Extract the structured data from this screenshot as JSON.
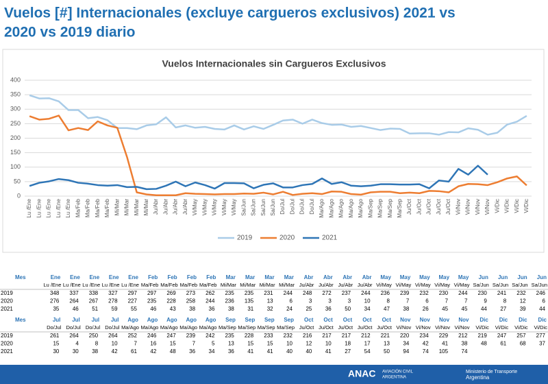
{
  "header": {
    "title_line1": "Vuelos [#] Internacionales (excluye cargueros exclusivos) 2021 vs",
    "title_line2": "2020 vs 2019 diario"
  },
  "chart_data": {
    "type": "line",
    "title": "Vuelos Internacionales sin Cargueros Exclusivos",
    "categories": [
      "Lu /Ene",
      "Lu /Ene",
      "Lu /Ene",
      "Lu /Ene",
      "Lu /Ene",
      "Ma/Feb",
      "Ma/Feb",
      "Ma/Feb",
      "Ma/Feb",
      "Mi/Mar",
      "Mi/Mar",
      "Mi/Mar",
      "Mi/Mar",
      "Ju/Abr",
      "Ju/Abr",
      "Ju/Abr",
      "Ju/Abr",
      "Vi/May",
      "Vi/May",
      "Vi/May",
      "Vi/May",
      "Vi/May",
      "Sa/Jun",
      "Sa/Jun",
      "Sa/Jun",
      "Sa/Jun",
      "Do/Jul",
      "Do/Jul",
      "Do/Jul",
      "Do/Jul",
      "Ma/Ago",
      "Ma/Ago",
      "Ma/Ago",
      "Ma/Ago",
      "Ma/Ago",
      "Ma/Sep",
      "Ma/Sep",
      "Ma/Sep",
      "Ma/Sep",
      "Ju/Oct",
      "Ju/Oct",
      "Ju/Oct",
      "Ju/Oct",
      "Ju/Oct",
      "Vi/Nov",
      "Vi/Nov",
      "Vi/Nov",
      "Vi/Nov",
      "Vi/Dic",
      "Vi/Dic",
      "Vi/Dic",
      "Vi/Dic"
    ],
    "series": [
      {
        "name": "2019",
        "color": "#a9cce8",
        "values": [
          348,
          337,
          338,
          327,
          297,
          297,
          269,
          273,
          262,
          235,
          235,
          231,
          244,
          248,
          272,
          237,
          244,
          236,
          239,
          232,
          230,
          244,
          230,
          241,
          232,
          246,
          261,
          264,
          250,
          264,
          252,
          246,
          247,
          239,
          242,
          235,
          228,
          233,
          232,
          216,
          217,
          217,
          212,
          221,
          220,
          234,
          229,
          212,
          219,
          247,
          257,
          277
        ]
      },
      {
        "name": "2020",
        "color": "#ed7d31",
        "values": [
          276,
          264,
          267,
          278,
          227,
          235,
          228,
          258,
          244,
          236,
          135,
          13,
          6,
          3,
          3,
          3,
          10,
          8,
          7,
          6,
          7,
          7,
          9,
          8,
          12,
          6,
          15,
          4,
          8,
          10,
          7,
          16,
          15,
          7,
          5,
          13,
          15,
          15,
          10,
          12,
          10,
          18,
          17,
          13,
          34,
          42,
          41,
          38,
          48,
          61,
          68,
          37
        ]
      },
      {
        "name": "2021",
        "color": "#2e75b6",
        "values": [
          35,
          46,
          51,
          59,
          55,
          46,
          43,
          38,
          36,
          38,
          31,
          32,
          24,
          25,
          36,
          50,
          34,
          47,
          38,
          26,
          45,
          45,
          44,
          27,
          39,
          44,
          30,
          30,
          38,
          42,
          61,
          42,
          48,
          36,
          34,
          36,
          41,
          41,
          40,
          40,
          41,
          27,
          54,
          50,
          94,
          74,
          105,
          74,
          null,
          null,
          null,
          null
        ]
      }
    ],
    "ylim": [
      0,
      400
    ],
    "yticks": [
      0,
      50,
      100,
      150,
      200,
      250,
      300,
      350,
      400
    ],
    "legend": "bottom"
  },
  "tables": [
    {
      "row_header": "Mes",
      "months": [
        "Ene",
        "Ene",
        "Ene",
        "Ene",
        "Ene",
        "Feb",
        "Feb",
        "Feb",
        "Feb",
        "Mar",
        "Mar",
        "Mar",
        "Mar",
        "Abr",
        "Abr",
        "Abr",
        "Abr",
        "May",
        "May",
        "May",
        "May",
        "May",
        "Jun",
        "Jun",
        "Jun",
        "Jun"
      ],
      "days": [
        "Lu /Ene",
        "Lu /Ene",
        "Lu /Ene",
        "Lu /Ene",
        "Lu /Ene",
        "Ma/Feb",
        "Ma/Feb",
        "Ma/Feb",
        "Ma/Feb",
        "Mi/Mar",
        "Mi/Mar",
        "Mi/Mar",
        "Mi/Mar",
        "Ju/Abr",
        "Ju/Abr",
        "Ju/Abr",
        "Ju/Abr",
        "Vi/May",
        "Vi/May",
        "Vi/May",
        "Vi/May",
        "Vi/May",
        "Sa/Jun",
        "Sa/Jun",
        "Sa/Jun",
        "Sa/Jun"
      ],
      "rows": [
        {
          "label": "2019",
          "values": [
            348,
            337,
            338,
            327,
            297,
            297,
            269,
            273,
            262,
            235,
            235,
            231,
            244,
            248,
            272,
            237,
            244,
            236,
            239,
            232,
            230,
            244,
            230,
            241,
            232,
            246
          ]
        },
        {
          "label": "2020",
          "values": [
            276,
            264,
            267,
            278,
            227,
            235,
            228,
            258,
            244,
            236,
            135,
            13,
            6,
            3,
            3,
            3,
            10,
            8,
            7,
            6,
            7,
            7,
            9,
            8,
            12,
            6
          ]
        },
        {
          "label": "2021",
          "values": [
            35,
            46,
            51,
            59,
            55,
            46,
            43,
            38,
            36,
            38,
            31,
            32,
            24,
            25,
            36,
            50,
            34,
            47,
            38,
            26,
            45,
            45,
            44,
            27,
            39,
            44
          ]
        }
      ]
    },
    {
      "row_header": "Mes",
      "months": [
        "Jul",
        "Jul",
        "Jul",
        "Jul",
        "Ago",
        "Ago",
        "Ago",
        "Ago",
        "Ago",
        "Sep",
        "Sep",
        "Sep",
        "Sep",
        "Oct",
        "Oct",
        "Oct",
        "Oct",
        "Oct",
        "Nov",
        "Nov",
        "Nov",
        "Nov",
        "Dic",
        "Dic",
        "Dic",
        "Dic"
      ],
      "days": [
        "Do/Jul",
        "Do/Jul",
        "Do/Jul",
        "Do/Jul",
        "Ma/Ago",
        "Ma/Ago",
        "Ma/Ago",
        "Ma/Ago",
        "Ma/Ago",
        "Ma/Sep",
        "Ma/Sep",
        "Ma/Sep",
        "Ma/Sep",
        "Ju/Oct",
        "Ju/Oct",
        "Ju/Oct",
        "Ju/Oct",
        "Ju/Oct",
        "Vi/Nov",
        "Vi/Nov",
        "Vi/Nov",
        "Vi/Nov",
        "Vi/Dic",
        "Vi/Dic",
        "Vi/Dic",
        "Vi/Dic"
      ],
      "rows": [
        {
          "label": "2019",
          "values": [
            261,
            264,
            250,
            264,
            252,
            246,
            247,
            239,
            242,
            235,
            228,
            233,
            232,
            216,
            217,
            217,
            212,
            221,
            220,
            234,
            229,
            212,
            219,
            247,
            257,
            277
          ]
        },
        {
          "label": "2020",
          "values": [
            15,
            4,
            8,
            10,
            7,
            16,
            15,
            7,
            5,
            13,
            15,
            15,
            10,
            12,
            10,
            18,
            17,
            13,
            34,
            42,
            41,
            38,
            48,
            61,
            68,
            37
          ]
        },
        {
          "label": "2021",
          "values": [
            30,
            30,
            38,
            42,
            61,
            42,
            48,
            36,
            34,
            36,
            41,
            41,
            40,
            40,
            41,
            27,
            54,
            50,
            94,
            74,
            105,
            74,
            null,
            null,
            null,
            null
          ]
        }
      ]
    }
  ],
  "footer": {
    "brand": "ANAC",
    "brand_sub1": "AVIACIÓN CIVIL",
    "brand_sub2": "ARGENTINA",
    "ministry1": "Ministerio de Transporte",
    "ministry2": "Argentina"
  }
}
